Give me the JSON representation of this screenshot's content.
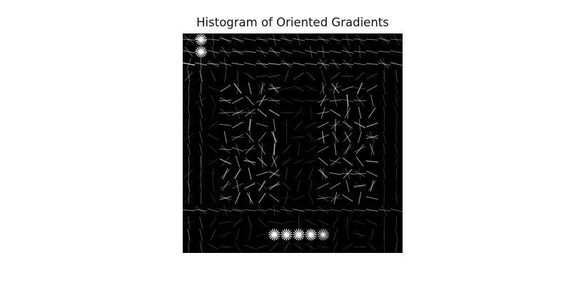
{
  "figure": {
    "title": "Histogram of Oriented Gradients"
  },
  "colors": {
    "background": "#ffffff",
    "image_background": "#000000",
    "gradient_strokes": "#ffffff",
    "title_text": "#111111"
  }
}
